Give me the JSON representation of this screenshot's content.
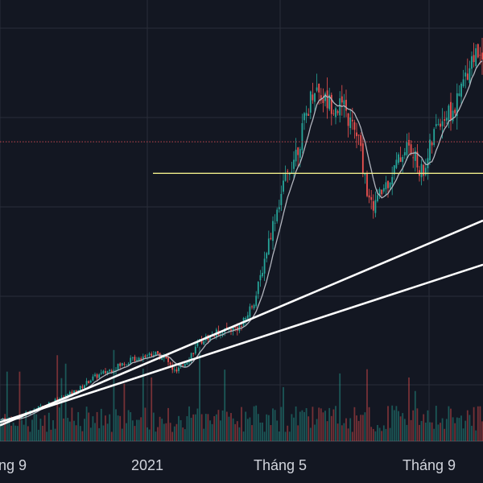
{
  "chart_data": {
    "type": "candlestick",
    "x_ticks": [
      "Tháng 9",
      "2021",
      "Tháng 5",
      "Tháng 9"
    ],
    "grid": true,
    "colors": {
      "background": "#131722",
      "grid": "#2a2e39",
      "up": "#26a69a",
      "down": "#ef5350",
      "ma_line": "#b2b5be",
      "level_line": "#f0ee8a",
      "dotted_level": "#c2464e",
      "trendline": "#ffffff",
      "text": "#d1d4dc"
    },
    "price_path": [
      [
        0,
        0.64
      ],
      [
        20,
        0.66
      ],
      [
        45,
        0.82
      ],
      [
        70,
        0.95
      ],
      [
        95,
        1.1
      ],
      [
        115,
        1.3
      ],
      [
        140,
        1.45
      ],
      [
        165,
        1.6
      ],
      [
        190,
        1.7
      ],
      [
        205,
        1.62
      ],
      [
        218,
        1.38
      ],
      [
        230,
        1.55
      ],
      [
        250,
        1.9
      ],
      [
        275,
        2.05
      ],
      [
        300,
        2.12
      ],
      [
        318,
        2.6
      ],
      [
        335,
        3.55
      ],
      [
        352,
        4.35
      ],
      [
        372,
        5.05
      ],
      [
        390,
        5.95
      ],
      [
        405,
        5.7
      ],
      [
        425,
        5.6
      ],
      [
        445,
        5.1
      ],
      [
        460,
        4.0
      ],
      [
        470,
        4.15
      ],
      [
        485,
        4.5
      ],
      [
        505,
        5.0
      ],
      [
        525,
        4.55
      ],
      [
        545,
        5.4
      ],
      [
        565,
        5.55
      ],
      [
        585,
        6.4
      ],
      [
        600,
        6.5
      ]
    ],
    "level_yellow": 4.55,
    "level_dotted": 5.05,
    "trendlines": [
      [
        [
          0,
          0.55
        ],
        [
          600,
          3.8
        ]
      ],
      [
        [
          0,
          0.6
        ],
        [
          600,
          3.1
        ]
      ]
    ],
    "volume_max": 100
  }
}
